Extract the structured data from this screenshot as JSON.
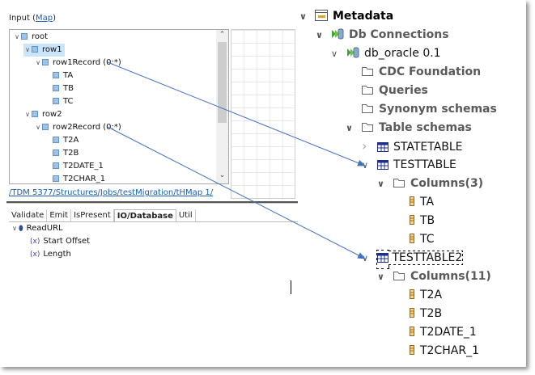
{
  "input_panel": {
    "label": "Input (",
    "map_link": "Map",
    "label_end": ")",
    "tree": [
      {
        "label": "root",
        "depth": 0,
        "expanded": true
      },
      {
        "label": "row1",
        "depth": 1,
        "expanded": true,
        "selected": true
      },
      {
        "label": "row1Record (0:*)",
        "depth": 2,
        "expanded": true
      },
      {
        "label": "TA",
        "depth": 3
      },
      {
        "label": "TB",
        "depth": 3
      },
      {
        "label": "TC",
        "depth": 3
      },
      {
        "label": "row2",
        "depth": 1,
        "expanded": true
      },
      {
        "label": "row2Record (0:*)",
        "depth": 2,
        "expanded": true
      },
      {
        "label": "T2A",
        "depth": 3
      },
      {
        "label": "T2B",
        "depth": 3
      },
      {
        "label": "T2DATE_1",
        "depth": 3
      },
      {
        "label": "T2CHAR_1",
        "depth": 3
      }
    ],
    "path_link": "/TDM 5377/Structures/Jobs/testMigration/tHMap 1/"
  },
  "function_panel": {
    "tabs": [
      {
        "label": "Validate"
      },
      {
        "label": "Emit"
      },
      {
        "label": "IsPresent"
      },
      {
        "label": "IO/Database",
        "active": true
      },
      {
        "label": "Util"
      }
    ],
    "tree": [
      {
        "label": "ReadURL",
        "type": "function",
        "expanded": true
      },
      {
        "label": "Start Offset",
        "type": "variable"
      },
      {
        "label": "Length",
        "type": "variable"
      }
    ]
  },
  "metadata_tree": [
    {
      "label": "Metadata",
      "depth": 0,
      "icon": "metadata-icon",
      "bold": true,
      "chevron": "down"
    },
    {
      "label": "Db Connections",
      "depth": 1,
      "icon": "db-connection-icon",
      "bold": true,
      "chevron": "down"
    },
    {
      "label": "db_oracle 0.1",
      "depth": 2,
      "icon": "db-connection-icon",
      "chevron": "down"
    },
    {
      "label": "CDC Foundation",
      "depth": 3,
      "icon": "folder-icon",
      "bold": true
    },
    {
      "label": "Queries",
      "depth": 3,
      "icon": "folder-icon",
      "bold": true
    },
    {
      "label": "Synonym schemas",
      "depth": 3,
      "icon": "folder-icon",
      "bold": true
    },
    {
      "label": "Table schemas",
      "depth": 3,
      "icon": "folder-icon",
      "bold": true,
      "chevron": "down"
    },
    {
      "label": "STATETABLE",
      "depth": 4,
      "icon": "table-icon",
      "chevron": "right"
    },
    {
      "label": "TESTTABLE",
      "depth": 4,
      "icon": "table-icon",
      "chevron": "down"
    },
    {
      "label": "Columns(3)",
      "depth": 5,
      "icon": "folder-icon",
      "bold": true,
      "chevron": "down"
    },
    {
      "label": "TA",
      "depth": 6,
      "icon": "column-icon"
    },
    {
      "label": "TB",
      "depth": 6,
      "icon": "column-icon"
    },
    {
      "label": "TC",
      "depth": 6,
      "icon": "column-icon"
    },
    {
      "label": "TESTTABLE2",
      "depth": 4,
      "icon": "table-icon",
      "chevron": "down",
      "focused": true
    },
    {
      "label": "Columns(11)",
      "depth": 5,
      "icon": "folder-icon",
      "bold": true,
      "chevron": "down"
    },
    {
      "label": "T2A",
      "depth": 6,
      "icon": "column-icon"
    },
    {
      "label": "T2B",
      "depth": 6,
      "icon": "column-icon"
    },
    {
      "label": "T2DATE_1",
      "depth": 6,
      "icon": "column-icon"
    },
    {
      "label": "T2CHAR_1",
      "depth": 6,
      "icon": "column-icon"
    }
  ],
  "mappings": [
    {
      "from": "row1Record (0:*)",
      "to": "TESTTABLE"
    },
    {
      "from": "row2Record (0:*)",
      "to": "TESTTABLE2"
    }
  ],
  "colors": {
    "link": "#1a5fb4",
    "arrow": "#4472c4",
    "selection": "#cce4f7"
  }
}
